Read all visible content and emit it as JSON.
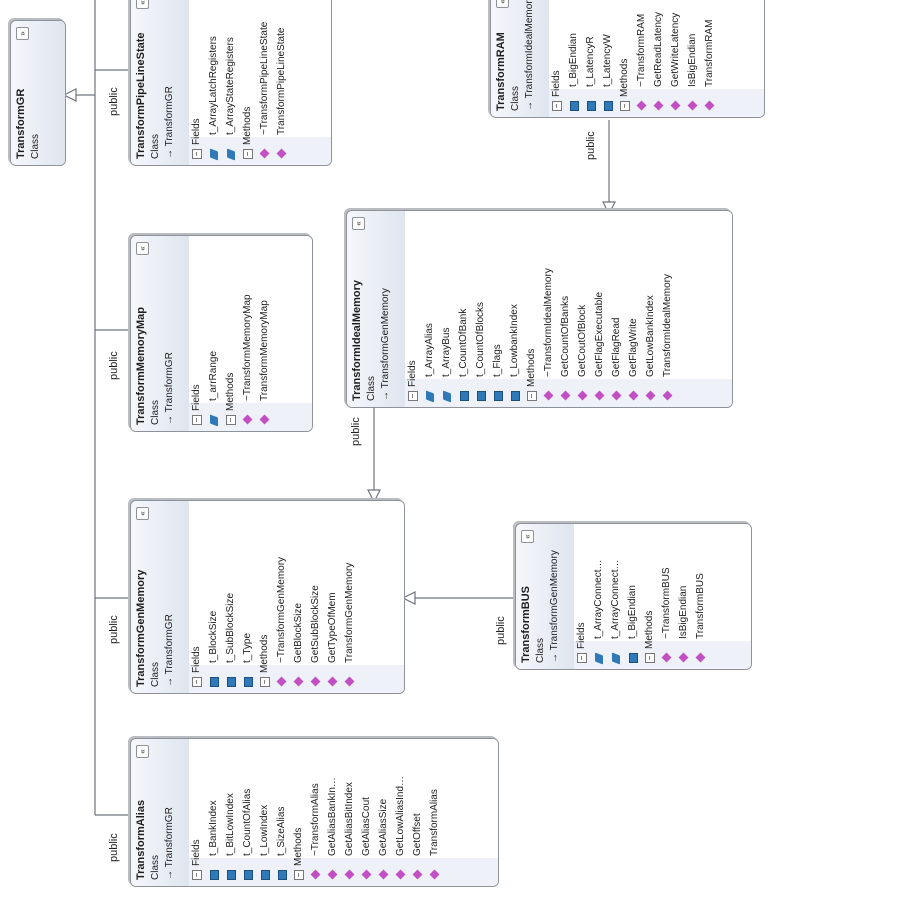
{
  "relation_label": "public",
  "sections": {
    "fields": "Fields",
    "methods": "Methods",
    "collapse_glyph": "−",
    "expand_glyph": "»",
    "collapse_box_glyph": "«"
  },
  "classes": {
    "transform_gr": {
      "name": "TransformGR",
      "kind": "Class"
    },
    "pipeline": {
      "name": "TransformPipeLineState",
      "kind": "Class",
      "base": "TransformGR",
      "fields": [
        "t_ArrayLatchRegisters",
        "t_ArrayStateRegisters"
      ],
      "methods": [
        "~TransformPipeLineState",
        "TransformPipeLineState"
      ]
    },
    "ram": {
      "name": "TransformRAM",
      "kind": "Class",
      "base": "TransformIdealMemory",
      "fields": [
        "t_BigEndian",
        "t_LatencyR",
        "t_LatencyW"
      ],
      "methods": [
        "~TransformRAM",
        "GetReadLatency",
        "GetWriteLatency",
        "IsBigEndian",
        "TransformRAM"
      ]
    },
    "memmap": {
      "name": "TransformMemoryMap",
      "kind": "Class",
      "base": "TransformGR",
      "fields": [
        "t_arrRange"
      ],
      "methods": [
        "~TransformMemoryMap",
        "TransformMemoryMap"
      ]
    },
    "ideal": {
      "name": "TransformIdealMemory",
      "kind": "Class",
      "base": "TransformGenMemory",
      "fields": [
        "t_ArrayAlias",
        "t_ArrayBus",
        "t_CountOfBank",
        "t_CountOfBlocks",
        "t_Flags",
        "t_LowbankIndex"
      ],
      "methods": [
        "~TransformIdealMemory",
        "GetCountOfBanks",
        "GetCoutOfBlock",
        "GetFlagExecutable",
        "GetFlagRead",
        "GetFlagWrite",
        "GetLowBankIndex",
        "TransformIdealMemory"
      ]
    },
    "genmem": {
      "name": "TransformGenMemory",
      "kind": "Class",
      "base": "TransformGR",
      "fields": [
        "t_BlockSize",
        "t_SubBlockSize",
        "t_Type"
      ],
      "methods": [
        "~TransformGenMemory",
        "GetBlockSize",
        "GetSubBlockSize",
        "GetTypeOfMem",
        "TransformGenMemory"
      ]
    },
    "bus": {
      "name": "TransformBUS",
      "kind": "Class",
      "base": "TransformGenMemory",
      "fields": [
        "t_ArrayConnect…",
        "t_ArrayConnect…",
        "t_BigEndian"
      ],
      "methods": [
        "~TransformBUS",
        "IsBigEndian",
        "TransformBUS"
      ]
    },
    "alias": {
      "name": "TransformAlias",
      "kind": "Class",
      "base": "TransformGR",
      "fields": [
        "t_BankIndex",
        "t_BitLowIndex",
        "t_CountOfAlias",
        "t_LowIndex",
        "t_SizeAlias"
      ],
      "methods": [
        "~TransformAlias",
        "GetAliasBankIn…",
        "GetAliasBitIndex",
        "GetAliasCout",
        "GetAliasSize",
        "GetLowAliasInd…",
        "GetOffset",
        "TransformAlias"
      ]
    }
  },
  "icons": {
    "field": "field-icon",
    "protected_field": "protected-field-icon",
    "method": "method-icon",
    "inheritance": "inheritance-arrow-icon"
  }
}
